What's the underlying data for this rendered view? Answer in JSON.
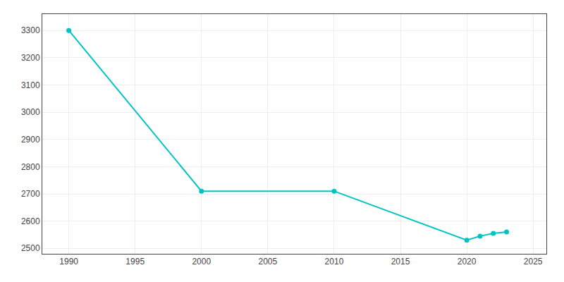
{
  "chart_data": {
    "type": "line",
    "x": [
      1990,
      2000,
      2010,
      2020,
      2021,
      2022,
      2023
    ],
    "values": [
      3300,
      2710,
      2710,
      2530,
      2545,
      2555,
      2560
    ],
    "color": "#00C4C4",
    "marker": "circle",
    "line_style": "solid",
    "xlim": [
      1988,
      2026
    ],
    "ylim": [
      2480,
      3360
    ],
    "xticks": [
      1990,
      1995,
      2000,
      2005,
      2010,
      2015,
      2020,
      2025
    ],
    "yticks": [
      2500,
      2600,
      2700,
      2800,
      2900,
      3000,
      3100,
      3200,
      3300
    ],
    "grid": true
  }
}
